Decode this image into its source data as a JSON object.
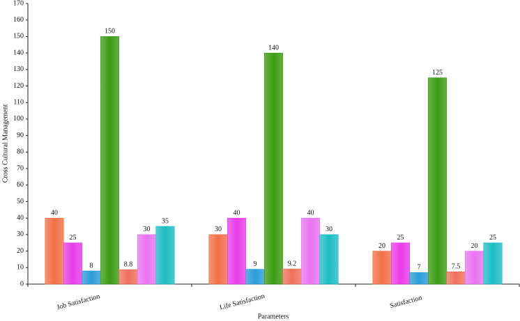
{
  "chart_data": {
    "type": "bar",
    "x_label": "Parameters",
    "y_label": "Cross Cultural Management",
    "categories": [
      "Job Satisfaction",
      "Life Satisfaction",
      "Satisfaction"
    ],
    "series": [
      {
        "color": "#f07048",
        "values": [
          40,
          30,
          20
        ]
      },
      {
        "color": "#e83ce8",
        "values": [
          25,
          40,
          25
        ]
      },
      {
        "color": "#2a9cd8",
        "values": [
          8,
          9,
          7
        ]
      },
      {
        "color": "#3c9a12",
        "values": [
          150,
          140,
          125
        ]
      },
      {
        "color": "#f0705c",
        "values": [
          8.8,
          9.2,
          7.5
        ]
      },
      {
        "color": "#e874f0",
        "values": [
          30,
          40,
          20
        ]
      },
      {
        "color": "#1ebcc4",
        "values": [
          35,
          30,
          25
        ]
      }
    ],
    "ylim": [
      0,
      170
    ],
    "yticks": [
      0,
      10,
      20,
      30,
      40,
      50,
      60,
      70,
      80,
      90,
      100,
      110,
      120,
      130,
      140,
      150,
      160,
      170
    ],
    "grid": false
  }
}
